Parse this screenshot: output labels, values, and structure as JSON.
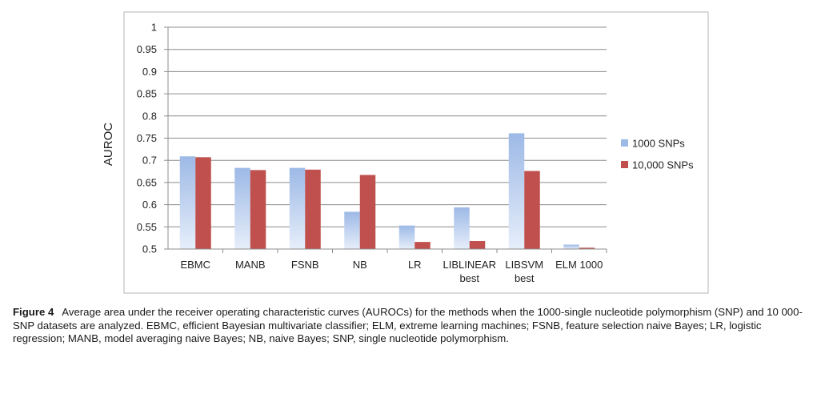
{
  "chart_data": {
    "type": "bar",
    "ylabel": "AUROC",
    "ylim": [
      0.5,
      1
    ],
    "yticks": [
      "0.5",
      "0.55",
      "0.6",
      "0.65",
      "0.7",
      "0.75",
      "0.8",
      "0.85",
      "0.9",
      "0.95",
      "1"
    ],
    "grid": true,
    "legend_position": "right",
    "categories": [
      [
        "EBMC"
      ],
      [
        "MANB"
      ],
      [
        "FSNB"
      ],
      [
        "NB"
      ],
      [
        "LR"
      ],
      [
        "LIBLINEAR",
        "best"
      ],
      [
        "LIBSVM",
        "best"
      ],
      [
        "ELM 1000"
      ]
    ],
    "series": [
      {
        "name": "1000 SNPs",
        "color": "#9db9e6",
        "values": [
          0.709,
          0.683,
          0.683,
          0.584,
          0.553,
          0.594,
          0.761,
          0.51
        ]
      },
      {
        "name": "10,000 SNPs",
        "color": "#c0504d",
        "values": [
          0.707,
          0.678,
          0.679,
          0.667,
          0.516,
          0.518,
          0.676,
          0.503
        ]
      }
    ]
  },
  "caption": {
    "label": "Figure 4",
    "text": "Average area under the receiver operating characteristic curves (AUROCs) for the methods when the 1000-single nucleotide polymorphism (SNP) and 10 000-SNP datasets are analyzed. EBMC, efficient Bayesian multivariate classifier; ELM, extreme learning machines; FSNB, feature selection naive Bayes; LR, logistic regression; MANB, model averaging naive Bayes; NB, naive Bayes; SNP, single nucleotide polymorphism."
  }
}
